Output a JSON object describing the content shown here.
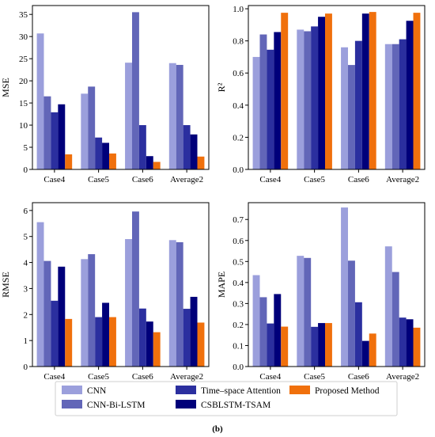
{
  "caption": "(b)",
  "series_colors": [
    "#9b9fdc",
    "#6266b8",
    "#2b2f9f",
    "#00007a",
    "#f0700c"
  ],
  "legend": {
    "entries": [
      "CNN",
      "CNN-Bi-LSTM",
      "Time–space Attention",
      "CSBLSTM-TSAM",
      "Proposed Method"
    ]
  },
  "chart_data": [
    {
      "type": "bar",
      "ylabel": "MSE",
      "categories": [
        "Case4",
        "Case5",
        "Case6",
        "Average2"
      ],
      "ylim": [
        0,
        37
      ],
      "yticks": [
        0,
        5,
        10,
        15,
        20,
        25,
        30,
        35
      ],
      "ytick_labels": [
        "0",
        "5",
        "10",
        "15",
        "20",
        "25",
        "30",
        "35"
      ],
      "series": [
        {
          "name": "CNN",
          "values": [
            30.7,
            17.1,
            24.1,
            24.0
          ]
        },
        {
          "name": "CNN-Bi-LSTM",
          "values": [
            16.5,
            18.7,
            35.5,
            23.6
          ]
        },
        {
          "name": "Time–space Attention",
          "values": [
            12.9,
            7.2,
            10.0,
            10.0
          ]
        },
        {
          "name": "CSBLSTM-TSAM",
          "values": [
            14.7,
            6.0,
            3.0,
            7.9
          ]
        },
        {
          "name": "Proposed Method",
          "values": [
            3.4,
            3.6,
            1.7,
            2.9
          ]
        }
      ]
    },
    {
      "type": "bar",
      "ylabel": "R²",
      "categories": [
        "Case4",
        "Case5",
        "Case6",
        "Average2"
      ],
      "ylim": [
        0,
        1.02
      ],
      "yticks": [
        0,
        0.2,
        0.4,
        0.6,
        0.8,
        1.0
      ],
      "ytick_labels": [
        "0.0",
        "0.2",
        "0.4",
        "0.6",
        "0.8",
        "1.0"
      ],
      "series": [
        {
          "name": "CNN",
          "values": [
            0.7,
            0.87,
            0.76,
            0.78
          ]
        },
        {
          "name": "CNN-Bi-LSTM",
          "values": [
            0.84,
            0.86,
            0.65,
            0.78
          ]
        },
        {
          "name": "Time–space Attention",
          "values": [
            0.745,
            0.89,
            0.8,
            0.81
          ]
        },
        {
          "name": "CSBLSTM-TSAM",
          "values": [
            0.855,
            0.95,
            0.97,
            0.925
          ]
        },
        {
          "name": "Proposed Method",
          "values": [
            0.975,
            0.97,
            0.98,
            0.975
          ]
        }
      ]
    },
    {
      "type": "bar",
      "ylabel": "RMSE",
      "categories": [
        "Case4",
        "Case5",
        "Case6",
        "Average2"
      ],
      "ylim": [
        0,
        6.3
      ],
      "yticks": [
        0,
        1,
        2,
        3,
        4,
        5,
        6
      ],
      "ytick_labels": [
        "0",
        "1",
        "2",
        "3",
        "4",
        "5",
        "6"
      ],
      "series": [
        {
          "name": "CNN",
          "values": [
            5.55,
            4.13,
            4.9,
            4.86
          ]
        },
        {
          "name": "CNN-Bi-LSTM",
          "values": [
            4.06,
            4.32,
            5.96,
            4.78
          ]
        },
        {
          "name": "Time–space Attention",
          "values": [
            2.53,
            1.9,
            2.23,
            2.22
          ]
        },
        {
          "name": "CSBLSTM-TSAM",
          "values": [
            3.84,
            2.45,
            1.73,
            2.68
          ]
        },
        {
          "name": "Proposed Method",
          "values": [
            1.83,
            1.9,
            1.32,
            1.69
          ]
        }
      ]
    },
    {
      "type": "bar",
      "ylabel": "MAPE",
      "categories": [
        "Case4",
        "Case5",
        "Case6",
        "Average2"
      ],
      "ylim": [
        0,
        0.78
      ],
      "yticks": [
        0,
        0.1,
        0.2,
        0.3,
        0.4,
        0.5,
        0.6,
        0.7
      ],
      "ytick_labels": [
        "0.0",
        "0.1",
        "0.2",
        "0.3",
        "0.4",
        "0.5",
        "0.6",
        "0.7"
      ],
      "series": [
        {
          "name": "CNN",
          "values": [
            0.435,
            0.527,
            0.757,
            0.572
          ]
        },
        {
          "name": "CNN-Bi-LSTM",
          "values": [
            0.33,
            0.517,
            0.504,
            0.45
          ]
        },
        {
          "name": "Time–space Attention",
          "values": [
            0.205,
            0.189,
            0.306,
            0.233
          ]
        },
        {
          "name": "CSBLSTM-TSAM",
          "values": [
            0.345,
            0.207,
            0.122,
            0.225
          ]
        },
        {
          "name": "Proposed Method",
          "values": [
            0.19,
            0.207,
            0.157,
            0.185
          ]
        }
      ]
    }
  ]
}
